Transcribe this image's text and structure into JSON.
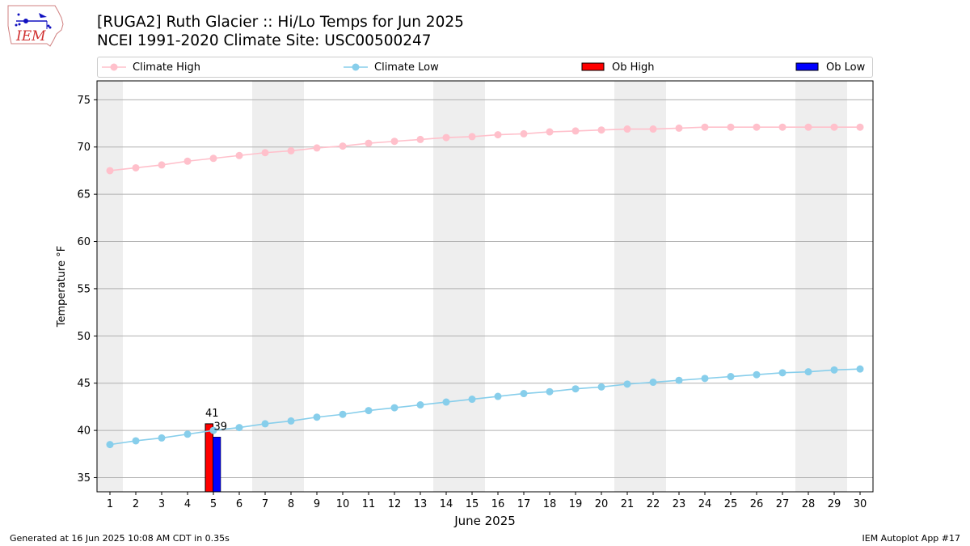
{
  "logo": {
    "text": "IEM"
  },
  "header": {
    "title": "[RUGA2] Ruth Glacier :: Hi/Lo Temps for Jun 2025",
    "subtitle": "NCEI 1991-2020 Climate Site: USC00500247"
  },
  "legend": {
    "items": [
      {
        "label": "Climate High",
        "color": "#ffc0cb",
        "kind": "line-marker"
      },
      {
        "label": "Climate Low",
        "color": "#87ceeb",
        "kind": "line-marker"
      },
      {
        "label": "Ob High",
        "color": "#ff0000",
        "kind": "bar"
      },
      {
        "label": "Ob Low",
        "color": "#0000ff",
        "kind": "bar"
      }
    ]
  },
  "footer": {
    "left": "Generated at 16 Jun 2025 10:08 AM CDT in 0.35s",
    "right": "IEM Autoplot App #17"
  },
  "chart_data": {
    "type": "line",
    "xlabel": "June 2025",
    "ylabel": "Temperature °F",
    "xlim": [
      0.5,
      30.5
    ],
    "ylim": [
      33.5,
      77
    ],
    "yticks": [
      35,
      40,
      45,
      50,
      55,
      60,
      65,
      70,
      75
    ],
    "x": [
      1,
      2,
      3,
      4,
      5,
      6,
      7,
      8,
      9,
      10,
      11,
      12,
      13,
      14,
      15,
      16,
      17,
      18,
      19,
      20,
      21,
      22,
      23,
      24,
      25,
      26,
      27,
      28,
      29,
      30
    ],
    "grid": "horizontal",
    "weekend_shading": [
      [
        0.5,
        1.5
      ],
      [
        6.5,
        8.5
      ],
      [
        13.5,
        15.5
      ],
      [
        20.5,
        22.5
      ],
      [
        27.5,
        29.5
      ]
    ],
    "series": [
      {
        "name": "Climate High",
        "color": "#ffc0cb",
        "values": [
          67.5,
          67.8,
          68.1,
          68.5,
          68.8,
          69.1,
          69.4,
          69.6,
          69.9,
          70.1,
          70.4,
          70.6,
          70.8,
          71.0,
          71.1,
          71.3,
          71.4,
          71.6,
          71.7,
          71.8,
          71.9,
          71.9,
          72.0,
          72.1,
          72.1,
          72.1,
          72.1,
          72.1,
          72.1,
          72.1
        ]
      },
      {
        "name": "Climate Low",
        "color": "#87ceeb",
        "values": [
          38.5,
          38.9,
          39.2,
          39.6,
          40.0,
          40.3,
          40.7,
          41.0,
          41.4,
          41.7,
          42.1,
          42.4,
          42.7,
          43.0,
          43.3,
          43.6,
          43.9,
          44.1,
          44.4,
          44.6,
          44.9,
          45.1,
          45.3,
          45.5,
          45.7,
          45.9,
          46.1,
          46.2,
          46.4,
          46.5
        ]
      }
    ],
    "observations": {
      "day": 5,
      "high": {
        "name": "Ob High",
        "value": 40.7,
        "label": "41",
        "color": "#ff0000"
      },
      "low": {
        "name": "Ob Low",
        "value": 39.3,
        "label": "39",
        "color": "#0000ff"
      }
    }
  }
}
